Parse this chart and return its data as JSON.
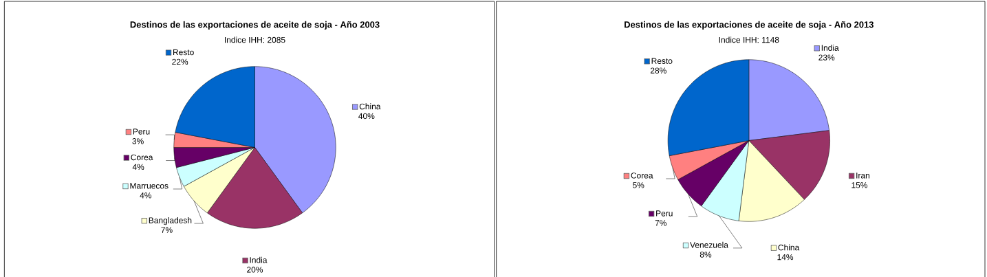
{
  "chart_data": [
    {
      "type": "pie",
      "title": "Destinos de las exportaciones de aceite de soja - Año 2003",
      "subtitle": "Indice IHH: 2085",
      "categories": [
        "China",
        "India",
        "Bangladesh",
        "Marruecos",
        "Corea",
        "Peru",
        "Resto"
      ],
      "values": [
        40,
        20,
        7,
        4,
        4,
        3,
        22
      ],
      "colors": [
        "#9999ff",
        "#993366",
        "#ffffcc",
        "#ccffff",
        "#660066",
        "#ff8080",
        "#0066cc"
      ],
      "value_labels": [
        "40%",
        "20%",
        "7%",
        "4%",
        "4%",
        "3%",
        "22%"
      ],
      "legend": "right"
    },
    {
      "type": "pie",
      "title": "Destinos de las exportaciones de aceite de soja - Año 2013",
      "subtitle": "Indice IHH: 1148",
      "categories": [
        "India",
        "Iran",
        "China",
        "Venezuela",
        "Peru",
        "Corea",
        "Resto"
      ],
      "values": [
        23,
        15,
        14,
        8,
        7,
        5,
        28
      ],
      "colors": [
        "#9999ff",
        "#993366",
        "#ffffcc",
        "#ccffff",
        "#660066",
        "#ff8080",
        "#0066cc"
      ],
      "value_labels": [
        "23%",
        "15%",
        "14%",
        "8%",
        "7%",
        "5%",
        "28%"
      ],
      "legend": "right"
    }
  ]
}
